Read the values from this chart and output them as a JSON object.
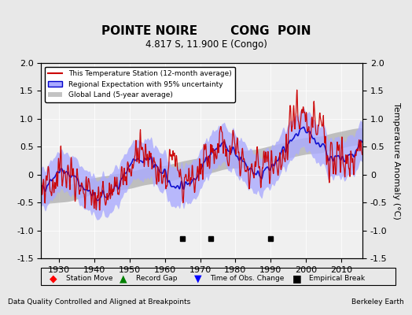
{
  "title": "POINTE NOIRE        CONG  POIN",
  "subtitle": "4.817 S, 11.900 E (Congo)",
  "ylabel": "Temperature Anomaly (°C)",
  "xlabel_left": "Data Quality Controlled and Aligned at Breakpoints",
  "xlabel_right": "Berkeley Earth",
  "ylim": [
    -1.5,
    2.0
  ],
  "xlim": [
    1925,
    2016
  ],
  "year_start": 1925,
  "year_end": 2015,
  "background_color": "#e8e8e8",
  "plot_bg_color": "#f0f0f0",
  "empirical_breaks": [
    1965,
    1973,
    1990
  ],
  "legend_labels": [
    "This Temperature Station (12-month average)",
    "Regional Expectation with 95% uncertainty",
    "Global Land (5-year average)"
  ],
  "station_color": "#cc0000",
  "regional_color": "#0000cc",
  "regional_fill_color": "#aaaaff",
  "global_color": "#aaaaaa",
  "xticks": [
    1930,
    1940,
    1950,
    1960,
    1970,
    1980,
    1990,
    2000,
    2010
  ],
  "yticks_left": [
    -1.5,
    -1.0,
    -0.5,
    0.0,
    0.5,
    1.0,
    1.5,
    2.0
  ],
  "yticks_right": [
    -1.5,
    -1.0,
    -0.5,
    0.0,
    0.5,
    1.0,
    1.5,
    2.0
  ]
}
